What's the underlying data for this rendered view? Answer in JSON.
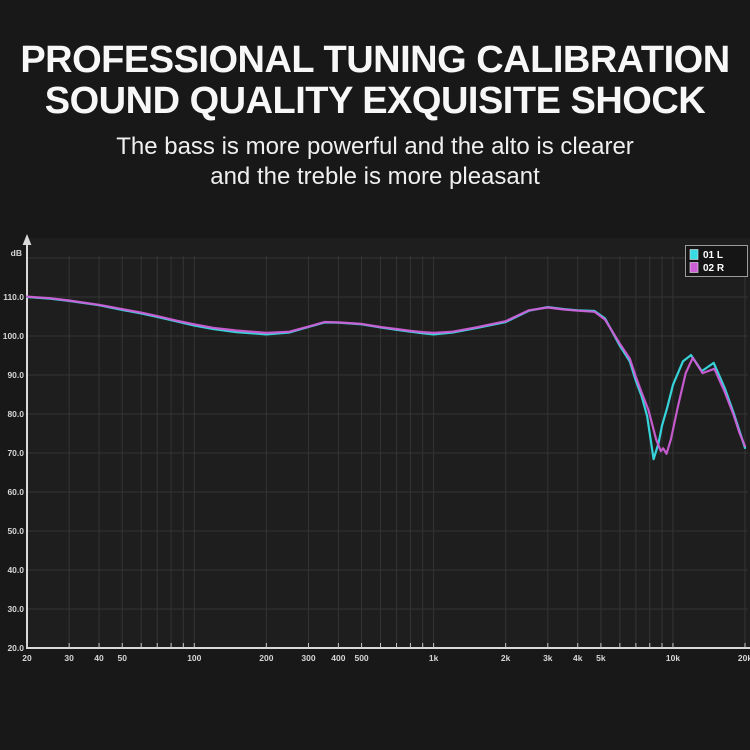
{
  "header": {
    "title_line1": "PROFESSIONAL TUNING CALIBRATION",
    "title_line2": "SOUND QUALITY EXQUISITE SHOCK",
    "subtitle_line1": "The bass is more powerful and the alto is clearer",
    "subtitle_line2": "and the treble is more pleasant"
  },
  "colors": {
    "background": "#181818",
    "plot_background": "#1e1e1e",
    "grid": "#343434",
    "axis": "#dadada",
    "left_channel": "#38dde4",
    "right_channel": "#cd5ed6"
  },
  "chart_data": {
    "type": "line",
    "x_scale": "log",
    "xlim": [
      20,
      20000
    ],
    "ylim": [
      20,
      120
    ],
    "grid": "on",
    "legend_position": "top-right",
    "y_axis": {
      "label": "dB",
      "tick_values": [
        20,
        30,
        40,
        50,
        60,
        70,
        80,
        90,
        100,
        110
      ],
      "tick_labels": [
        "20.0",
        "30.0",
        "40.0",
        "50.0",
        "60.0",
        "70.0",
        "80.0",
        "90.0",
        "100.0",
        "110.0"
      ]
    },
    "x_axis": {
      "tick_values": [
        20,
        30,
        40,
        50,
        100,
        200,
        300,
        400,
        500,
        1000,
        2000,
        3000,
        4000,
        5000,
        10000,
        20000
      ],
      "tick_labels": [
        "20",
        "30",
        "40",
        "50",
        "100",
        "200",
        "300",
        "400",
        "500",
        "1k",
        "2k",
        "3k",
        "4k",
        "5k",
        "10k",
        "20k"
      ]
    },
    "legend": [
      {
        "label": "01 L",
        "color": "#38dde4"
      },
      {
        "label": "02 R",
        "color": "#cd5ed6"
      }
    ],
    "series": [
      {
        "name": "01 L",
        "id": "left-channel",
        "color": "#38dde4",
        "points": [
          [
            20,
            110
          ],
          [
            25,
            109.6
          ],
          [
            30,
            109
          ],
          [
            40,
            107.9
          ],
          [
            50,
            106.7
          ],
          [
            60,
            105.8
          ],
          [
            70,
            104.9
          ],
          [
            85,
            103.7
          ],
          [
            100,
            102.7
          ],
          [
            120,
            101.8
          ],
          [
            150,
            101
          ],
          [
            200,
            100.4
          ],
          [
            250,
            100.9
          ],
          [
            300,
            102.3
          ],
          [
            350,
            103.5
          ],
          [
            400,
            103.4
          ],
          [
            500,
            103
          ],
          [
            600,
            102.2
          ],
          [
            700,
            101.6
          ],
          [
            800,
            101.1
          ],
          [
            900,
            100.7
          ],
          [
            1000,
            100.4
          ],
          [
            1200,
            100.9
          ],
          [
            1500,
            102
          ],
          [
            2000,
            103.6
          ],
          [
            2500,
            106.5
          ],
          [
            3000,
            107.4
          ],
          [
            3500,
            106.9
          ],
          [
            4000,
            106.6
          ],
          [
            4700,
            106.4
          ],
          [
            5200,
            104.5
          ],
          [
            6000,
            97.5
          ],
          [
            6600,
            93.5
          ],
          [
            7000,
            88.5
          ],
          [
            7400,
            84.5
          ],
          [
            7800,
            79.5
          ],
          [
            8300,
            68.4
          ],
          [
            8700,
            72.5
          ],
          [
            9000,
            77
          ],
          [
            9500,
            82
          ],
          [
            10000,
            87.5
          ],
          [
            11000,
            93.5
          ],
          [
            11900,
            95.1
          ],
          [
            13200,
            91
          ],
          [
            14800,
            93.1
          ],
          [
            16500,
            86.5
          ],
          [
            18000,
            80
          ],
          [
            19000,
            75.5
          ],
          [
            20000,
            71.3
          ]
        ]
      },
      {
        "name": "02 R",
        "id": "right-channel",
        "color": "#cd5ed6",
        "points": [
          [
            20,
            110.1
          ],
          [
            25,
            109.7
          ],
          [
            30,
            109.1
          ],
          [
            40,
            108
          ],
          [
            50,
            106.9
          ],
          [
            60,
            106
          ],
          [
            70,
            105.1
          ],
          [
            85,
            103.9
          ],
          [
            100,
            103
          ],
          [
            120,
            102.1
          ],
          [
            150,
            101.4
          ],
          [
            200,
            100.8
          ],
          [
            250,
            101.1
          ],
          [
            300,
            102.4
          ],
          [
            350,
            103.6
          ],
          [
            400,
            103.5
          ],
          [
            500,
            103.1
          ],
          [
            600,
            102.3
          ],
          [
            700,
            101.8
          ],
          [
            800,
            101.3
          ],
          [
            900,
            101
          ],
          [
            1000,
            100.8
          ],
          [
            1200,
            101.1
          ],
          [
            1500,
            102.2
          ],
          [
            2000,
            103.8
          ],
          [
            2500,
            106.6
          ],
          [
            3000,
            107.3
          ],
          [
            3500,
            106.8
          ],
          [
            4000,
            106.5
          ],
          [
            4700,
            106.2
          ],
          [
            5200,
            104.2
          ],
          [
            6000,
            98
          ],
          [
            6600,
            94.2
          ],
          [
            7000,
            89.5
          ],
          [
            7400,
            85.5
          ],
          [
            7900,
            81
          ],
          [
            8500,
            73.5
          ],
          [
            8900,
            70.5
          ],
          [
            9100,
            71.2
          ],
          [
            9400,
            69.8
          ],
          [
            9800,
            73.5
          ],
          [
            10500,
            82
          ],
          [
            11300,
            90.5
          ],
          [
            12100,
            94.4
          ],
          [
            13300,
            90.5
          ],
          [
            14900,
            91.6
          ],
          [
            16500,
            85.5
          ],
          [
            18000,
            79.5
          ],
          [
            19000,
            75
          ],
          [
            20000,
            71.8
          ]
        ]
      }
    ]
  }
}
